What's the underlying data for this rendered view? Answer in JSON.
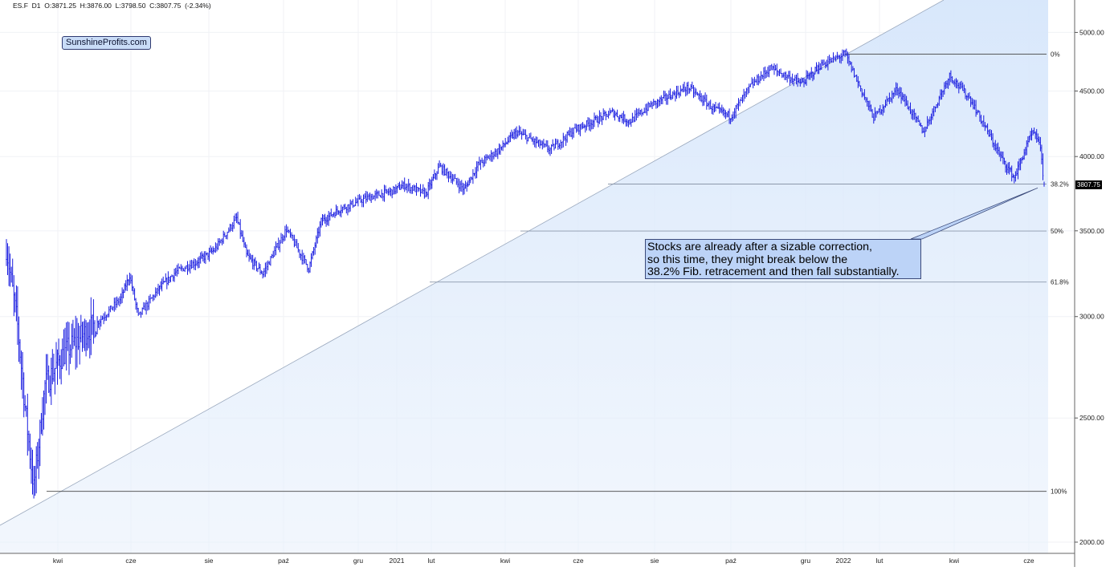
{
  "header": {
    "symbol": "ES.F",
    "interval": "D1",
    "ohlc_text": "O:3871.25  H:3876.00  L:3798.50  C:3807.75  (-2.34%)"
  },
  "watermark": "SunshineProfits.com",
  "annotation": {
    "line1": "Stocks are already after a sizable correction,",
    "line2": "so this time, they might break below the",
    "line3": "38.2% Fib. retracement and then fall substantially."
  },
  "last_price_label": "3807.75",
  "chart_data": {
    "type": "line",
    "title": "",
    "xlabel": "",
    "ylabel": "",
    "y_scale": "log",
    "ylim": [
      1960,
      5300
    ],
    "grid": true,
    "y_ticks": [
      {
        "value": 5000,
        "label": "5000.00"
      },
      {
        "value": 4500,
        "label": "4500.00"
      },
      {
        "value": 4000,
        "label": "4000.00"
      },
      {
        "value": 3500,
        "label": "3500.00"
      },
      {
        "value": 3000,
        "label": "3000.00"
      },
      {
        "value": 2500,
        "label": "2500.00"
      },
      {
        "value": 2000,
        "label": "2000.00"
      }
    ],
    "x_ticks": [
      "kwi",
      "cze",
      "sie",
      "paź",
      "gru",
      "2021",
      "lut",
      "kwi",
      "cze",
      "sie",
      "paź",
      "gru",
      "2022",
      "lut",
      "kwi",
      "cze"
    ],
    "fib_levels": [
      {
        "label": "0%",
        "value": 4808
      },
      {
        "label": "38.2%",
        "value": 3807
      },
      {
        "label": "50%",
        "value": 3499
      },
      {
        "label": "61.8%",
        "value": 3192
      },
      {
        "label": "100%",
        "value": 2191
      }
    ],
    "series": [
      {
        "x": [
          "2020-03-01",
          "2020-03-10",
          "2020-03-16",
          "2020-03-23",
          "2020-04-01",
          "2020-04-15",
          "2020-05-01",
          "2020-05-15",
          "2020-06-01",
          "2020-06-08",
          "2020-06-15",
          "2020-07-01",
          "2020-07-15",
          "2020-08-01",
          "2020-08-15",
          "2020-09-02",
          "2020-09-10",
          "2020-09-23",
          "2020-10-12",
          "2020-10-30",
          "2020-11-09",
          "2020-11-24",
          "2020-12-15",
          "2021-01-05",
          "2021-01-15",
          "2021-02-01",
          "2021-02-12",
          "2021-03-04",
          "2021-03-15",
          "2021-04-01",
          "2021-04-15",
          "2021-05-12",
          "2021-06-01",
          "2021-07-01",
          "2021-07-15",
          "2021-08-01",
          "2021-08-31",
          "2021-09-20",
          "2021-10-04",
          "2021-10-20",
          "2021-11-05",
          "2021-11-30",
          "2021-12-15",
          "2022-01-04",
          "2022-01-27",
          "2022-02-15",
          "2022-03-08",
          "2022-03-29",
          "2022-04-15",
          "2022-05-09",
          "2022-05-20",
          "2022-06-03",
          "2022-06-09",
          "2022-06-13"
        ],
        "y": [
          3400,
          2950,
          2550,
          2200,
          2650,
          2800,
          2900,
          2980,
          3100,
          3230,
          3000,
          3150,
          3250,
          3310,
          3380,
          3580,
          3350,
          3240,
          3510,
          3270,
          3560,
          3640,
          3710,
          3760,
          3800,
          3740,
          3930,
          3770,
          3940,
          4050,
          4180,
          4050,
          4200,
          4330,
          4260,
          4390,
          4530,
          4360,
          4300,
          4540,
          4690,
          4560,
          4710,
          4810,
          4290,
          4520,
          4180,
          4630,
          4430,
          4000,
          3850,
          4170,
          4120,
          3808
        ]
      }
    ]
  }
}
